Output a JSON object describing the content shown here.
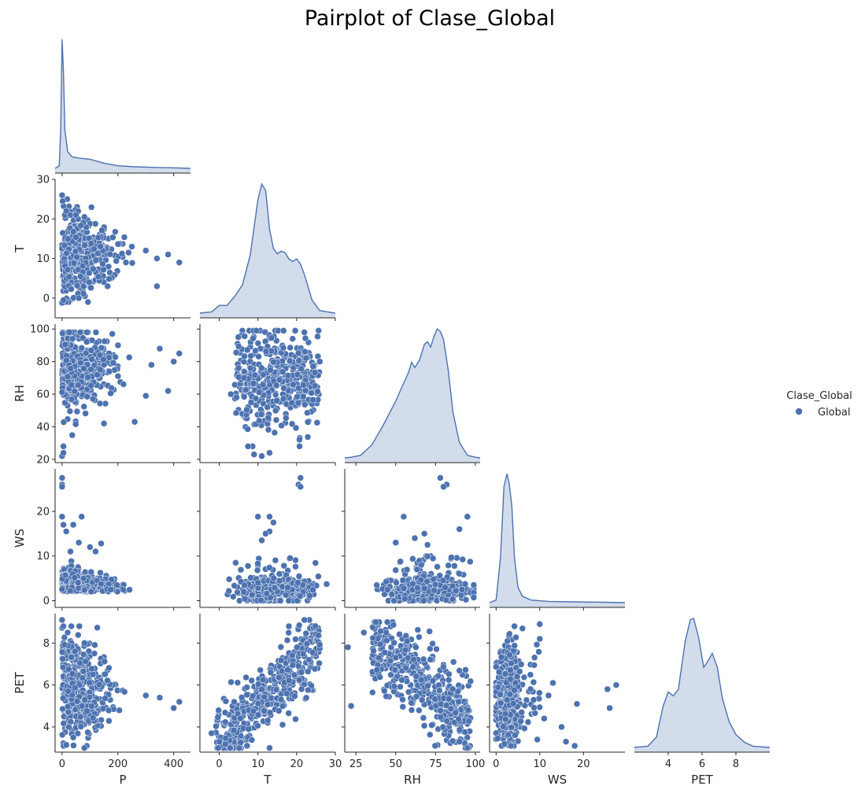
{
  "chart_data": {
    "type": "scatter",
    "title": "Pairplot of Clase_Global",
    "variables": [
      "P",
      "T",
      "RH",
      "WS",
      "PET"
    ],
    "hue": "Clase_Global",
    "corner": true,
    "diagonal_kind": "kde",
    "colors": {
      "series": "#4C72B0",
      "kde_fill": "#4C72B0",
      "axis": "#262626"
    },
    "legend": {
      "title": "Clase_Global",
      "entries": [
        "Global"
      ],
      "placement": "right"
    },
    "series": [
      {
        "name": "Global",
        "color": "#4C72B0"
      }
    ],
    "axes": {
      "P": {
        "range": [
          -25,
          460
        ],
        "ticks": [
          0,
          200,
          400
        ]
      },
      "T": {
        "range": [
          -5,
          30
        ],
        "ticks": [
          0,
          10,
          20,
          30
        ]
      },
      "RH": {
        "range": [
          18,
          103
        ],
        "ticks": [
          20,
          40,
          60,
          80,
          100
        ],
        "xticks": [
          25,
          50,
          75,
          100
        ]
      },
      "WS": {
        "range": [
          -1.5,
          29.5
        ],
        "ticks": [
          0,
          10,
          20
        ]
      },
      "PET": {
        "range": [
          2.8,
          9.4
        ],
        "ticks": [
          4,
          6,
          8
        ],
        "xrange": [
          2,
          10
        ]
      }
    },
    "kde": {
      "P": {
        "x": [
          -25,
          -10,
          -5,
          0,
          5,
          10,
          20,
          35,
          60,
          100,
          150,
          200,
          260,
          320,
          400,
          460
        ],
        "y": [
          0,
          0.02,
          0.3,
          1.0,
          0.75,
          0.3,
          0.13,
          0.09,
          0.08,
          0.07,
          0.04,
          0.02,
          0.012,
          0.008,
          0.004,
          0
        ]
      },
      "T": {
        "x": [
          -5,
          -2,
          0,
          2,
          4,
          6,
          8,
          10,
          11,
          12,
          13,
          14,
          15,
          16,
          17,
          18,
          19,
          20,
          21,
          22,
          23,
          24,
          26,
          28,
          30
        ],
        "y": [
          0,
          0.01,
          0.06,
          0.06,
          0.13,
          0.22,
          0.45,
          0.88,
          1.0,
          0.95,
          0.65,
          0.5,
          0.46,
          0.48,
          0.47,
          0.42,
          0.4,
          0.42,
          0.38,
          0.3,
          0.2,
          0.1,
          0.02,
          0.01,
          0
        ]
      },
      "RH": {
        "x": [
          18,
          22,
          28,
          35,
          42,
          50,
          55,
          58,
          60,
          62,
          65,
          68,
          70,
          72,
          74,
          76,
          78,
          80,
          83,
          86,
          90,
          95,
          100,
          103
        ],
        "y": [
          0,
          0.005,
          0.02,
          0.1,
          0.25,
          0.44,
          0.58,
          0.66,
          0.74,
          0.7,
          0.76,
          0.88,
          0.9,
          0.86,
          0.94,
          1.0,
          0.98,
          0.92,
          0.68,
          0.35,
          0.12,
          0.02,
          0.005,
          0
        ]
      },
      "WS": {
        "x": [
          -1.5,
          0,
          1,
          1.8,
          2.5,
          3,
          3.6,
          4.2,
          5,
          6,
          8,
          12,
          18,
          25,
          29.5
        ],
        "y": [
          0,
          0.02,
          0.35,
          0.9,
          1.0,
          0.92,
          0.75,
          0.35,
          0.12,
          0.05,
          0.02,
          0.01,
          0.006,
          0.003,
          0
        ]
      },
      "PET": {
        "x": [
          2,
          2.8,
          3.3,
          3.7,
          4.0,
          4.3,
          4.6,
          5.0,
          5.3,
          5.5,
          5.8,
          6.1,
          6.4,
          6.6,
          6.9,
          7.2,
          7.6,
          8.0,
          8.5,
          9.0,
          10
        ],
        "y": [
          0,
          0.01,
          0.08,
          0.32,
          0.43,
          0.4,
          0.45,
          0.82,
          0.99,
          1.0,
          0.85,
          0.62,
          0.68,
          0.73,
          0.62,
          0.38,
          0.2,
          0.1,
          0.04,
          0.01,
          0
        ]
      }
    },
    "outliers": {
      "P_T": [
        [
          0,
          26
        ],
        [
          2,
          24.5
        ],
        [
          10,
          21
        ],
        [
          15,
          22
        ],
        [
          30,
          21
        ],
        [
          50,
          21
        ],
        [
          80,
          20.5
        ],
        [
          250,
          13
        ],
        [
          300,
          12
        ],
        [
          340,
          10
        ],
        [
          380,
          11
        ],
        [
          420,
          9
        ],
        [
          340,
          3
        ],
        [
          60,
          0
        ],
        [
          0,
          -1.2
        ],
        [
          5,
          -0.5
        ]
      ],
      "P_RH": [
        [
          0,
          22
        ],
        [
          5,
          24
        ],
        [
          5,
          28
        ],
        [
          150,
          42
        ],
        [
          260,
          43
        ],
        [
          300,
          59
        ],
        [
          350,
          88
        ],
        [
          380,
          62
        ],
        [
          400,
          80
        ],
        [
          420,
          85
        ],
        [
          180,
          97
        ],
        [
          320,
          78
        ]
      ],
      "P_WS": [
        [
          0,
          27.5
        ],
        [
          0,
          26
        ],
        [
          0,
          25.5
        ],
        [
          0,
          18.8
        ],
        [
          70,
          18.8
        ],
        [
          5,
          17
        ],
        [
          40,
          17
        ],
        [
          15,
          15.5
        ],
        [
          60,
          13
        ],
        [
          100,
          12
        ],
        [
          140,
          12.8
        ],
        [
          120,
          11
        ],
        [
          30,
          11
        ]
      ],
      "P_PET": [
        [
          0,
          9.1
        ],
        [
          5,
          8.8
        ],
        [
          20,
          8.5
        ],
        [
          350,
          5.4
        ],
        [
          400,
          4.9
        ],
        [
          420,
          5.2
        ],
        [
          300,
          5.5
        ],
        [
          80,
          3.0
        ],
        [
          40,
          3.5
        ]
      ],
      "T_RH": [
        [
          9,
          23
        ],
        [
          11,
          22
        ],
        [
          13,
          24
        ],
        [
          5,
          76
        ],
        [
          3,
          60
        ],
        [
          26,
          80
        ],
        [
          22,
          98
        ]
      ],
      "T_WS": [
        [
          21,
          27.5
        ],
        [
          20.5,
          26
        ],
        [
          21,
          25.5
        ],
        [
          10,
          18.8
        ],
        [
          13,
          18.8
        ],
        [
          14,
          17.5
        ],
        [
          13,
          15.5
        ],
        [
          12,
          15
        ],
        [
          11,
          13.5
        ]
      ],
      "T_PET": [
        [
          22,
          9.1
        ],
        [
          18,
          8.8
        ],
        [
          13,
          3.0
        ],
        [
          0,
          3.3
        ],
        [
          -2,
          3.7
        ]
      ],
      "RH_WS": [
        [
          78,
          27.5
        ],
        [
          82,
          26
        ],
        [
          80,
          25.5
        ],
        [
          55,
          18.8
        ],
        [
          95,
          18.8
        ],
        [
          68,
          15
        ],
        [
          90,
          16
        ],
        [
          62,
          14
        ],
        [
          50,
          13
        ],
        [
          70,
          12.5
        ]
      ],
      "RH_PET": [
        [
          20,
          7.8
        ],
        [
          22,
          5.0
        ],
        [
          30,
          8.5
        ],
        [
          95,
          3.0
        ],
        [
          90,
          3.3
        ]
      ],
      "WS_PET": [
        [
          27.5,
          6.0
        ],
        [
          25.5,
          5.8
        ],
        [
          26,
          4.9
        ],
        [
          18.5,
          5.1
        ],
        [
          15,
          4.0
        ],
        [
          16,
          3.3
        ],
        [
          18,
          3.1
        ],
        [
          10,
          8.9
        ],
        [
          10,
          8.2
        ],
        [
          13,
          6.1
        ],
        [
          12,
          5.5
        ],
        [
          11,
          4.4
        ]
      ]
    }
  }
}
